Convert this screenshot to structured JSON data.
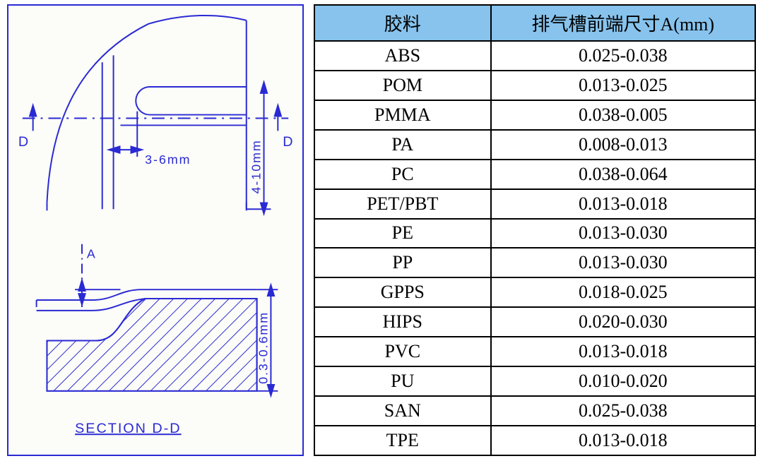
{
  "table": {
    "header": {
      "col1": "胶料",
      "col2": "排气槽前端尺寸A(mm)"
    },
    "rows": [
      {
        "material": "ABS",
        "range": "0.025-0.038"
      },
      {
        "material": "POM",
        "range": "0.013-0.025"
      },
      {
        "material": "PMMA",
        "range": "0.038-0.005"
      },
      {
        "material": "PA",
        "range": "0.008-0.013"
      },
      {
        "material": "PC",
        "range": "0.038-0.064"
      },
      {
        "material": "PET/PBT",
        "range": "0.013-0.018"
      },
      {
        "material": "PE",
        "range": "0.013-0.030"
      },
      {
        "material": "PP",
        "range": "0.013-0.030"
      },
      {
        "material": "GPPS",
        "range": "0.018-0.025"
      },
      {
        "material": "HIPS",
        "range": "0.020-0.030"
      },
      {
        "material": "PVC",
        "range": "0.013-0.018"
      },
      {
        "material": "PU",
        "range": "0.010-0.020"
      },
      {
        "material": "SAN",
        "range": "0.025-0.038"
      },
      {
        "material": "TPE",
        "range": "0.013-0.018"
      }
    ],
    "style": {
      "header_bg": "#87c3ed",
      "header_color": "#000000",
      "cell_bg": "#ffffff",
      "cell_color": "#000000",
      "border_color": "#000000",
      "header_font_size": 26,
      "cell_font_size": 26,
      "col_widths": [
        "40%",
        "60%"
      ]
    }
  },
  "diagram": {
    "type": "engineering-drawing",
    "line_color": "#2a2ad4",
    "hatch_color": "#2a2ad4",
    "background": "#fcfcf8",
    "labels": {
      "section_left_D": "D",
      "section_right_D": "D",
      "dim_3_6mm": "3-6mm",
      "dim_4_10mm": "4-10mm",
      "dim_A": "A",
      "dim_0_3_0_6mm": "0.3-0.6mm",
      "section_title": "SECTION  D-D"
    },
    "label_fontsize": 18,
    "title_fontsize": 20
  }
}
